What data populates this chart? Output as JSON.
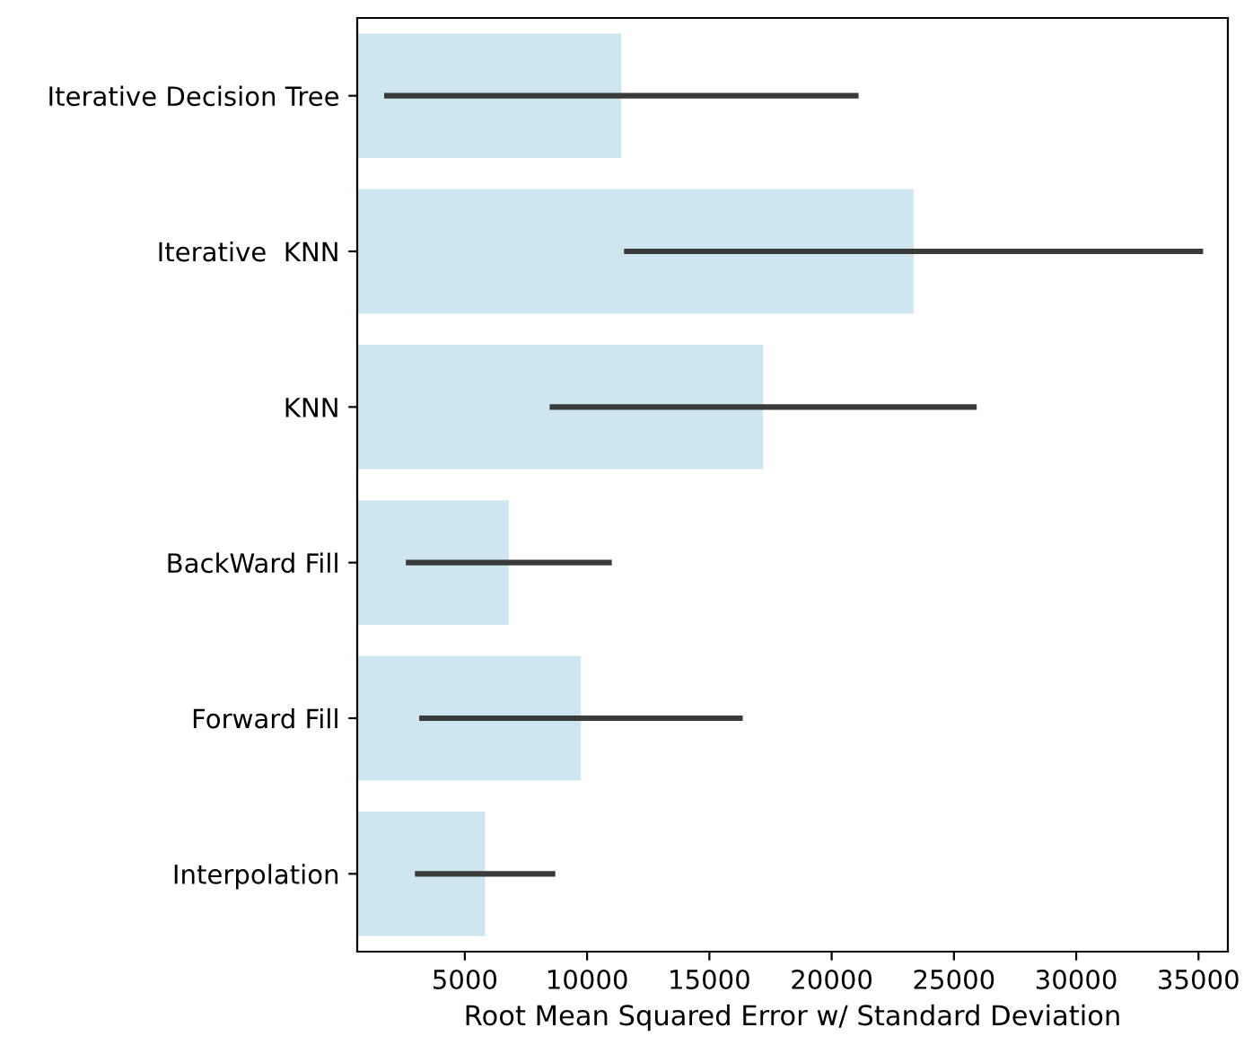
{
  "chart_data": {
    "type": "bar",
    "orientation": "horizontal",
    "xlabel": "Root Mean Squared Error w/ Standard Deviation",
    "categories": [
      "Iterative Decision Tree",
      "Iterative  KNN",
      "KNN",
      "BackWard Fill",
      "Forward Fill",
      "Interpolation"
    ],
    "values": [
      11400,
      23350,
      17200,
      6800,
      9750,
      5830
    ],
    "errors": [
      9700,
      11840,
      8730,
      4210,
      6615,
      2870
    ],
    "color": "#cde6ef",
    "xlim": [
      600,
      36200
    ],
    "xticks": [
      5000,
      10000,
      15000,
      20000,
      25000,
      30000,
      35000
    ],
    "grid": false
  }
}
